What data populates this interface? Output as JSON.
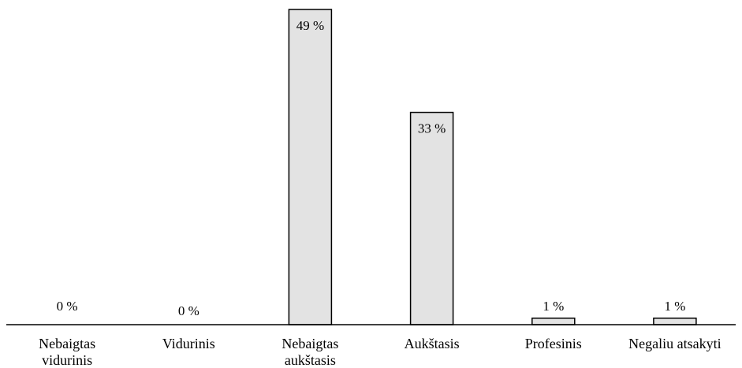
{
  "chart_data": {
    "type": "bar",
    "title": "",
    "xlabel": "",
    "ylabel": "",
    "categories": [
      [
        "Nebaigtas",
        "vidurinis"
      ],
      [
        "Vidurinis"
      ],
      [
        "Nebaigtas",
        "aukštasis"
      ],
      [
        "Aukštasis"
      ],
      [
        "Profesinis"
      ],
      [
        "Negaliu atsakyti"
      ]
    ],
    "values": [
      0,
      0,
      49,
      33,
      1,
      1
    ],
    "data_labels": [
      "0 %",
      "0 %",
      "49 %",
      "33 %",
      "1 %",
      "1 %"
    ],
    "ylim": [
      0,
      49
    ],
    "grid": false,
    "legend": "none",
    "colors": {
      "bar_fill": "#e3e3e3",
      "bar_stroke": "#000000",
      "text": "#000000"
    }
  }
}
